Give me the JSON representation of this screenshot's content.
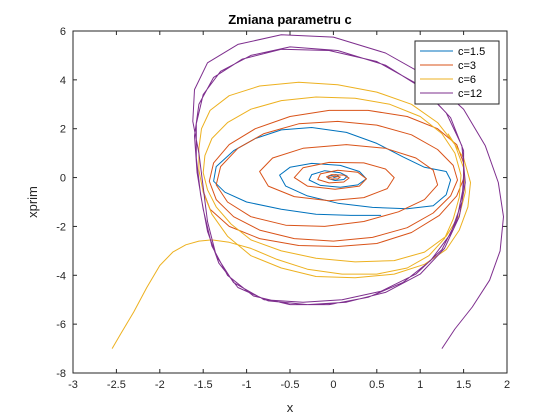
{
  "chart_data": {
    "type": "line",
    "title": "Zmiana parametru c",
    "xlabel": "x",
    "ylabel": "xprim",
    "xlim": [
      -3,
      2
    ],
    "ylim": [
      -8,
      6
    ],
    "xticks": [
      "-3",
      "-2.5",
      "-2",
      "-1.5",
      "-1",
      "-0.5",
      "0",
      "0.5",
      "1",
      "1.5",
      "2"
    ],
    "yticks": [
      "-8",
      "-6",
      "-4",
      "-2",
      "0",
      "2",
      "4",
      "6"
    ],
    "grid": false,
    "legend_position": "top-right",
    "series": [
      {
        "name": "c=1.5",
        "color": "#0072BD",
        "points": [
          [
            0,
            0
          ],
          [
            0.06,
            0.05
          ],
          [
            0.03,
            0.12
          ],
          [
            -0.05,
            0.07
          ],
          [
            -0.06,
            -0.04
          ],
          [
            0.02,
            -0.12
          ],
          [
            0.12,
            -0.08
          ],
          [
            0.16,
            0.05
          ],
          [
            0.08,
            0.2
          ],
          [
            -0.1,
            0.28
          ],
          [
            -0.25,
            0.12
          ],
          [
            -0.28,
            -0.1
          ],
          [
            -0.15,
            -0.32
          ],
          [
            0.08,
            -0.4
          ],
          [
            0.28,
            -0.3
          ],
          [
            0.38,
            -0.05
          ],
          [
            0.3,
            0.25
          ],
          [
            0.08,
            0.5
          ],
          [
            -0.25,
            0.58
          ],
          [
            -0.5,
            0.42
          ],
          [
            -0.62,
            0.1
          ],
          [
            -0.55,
            -0.35
          ],
          [
            -0.3,
            -0.75
          ],
          [
            0.05,
            -1.05
          ],
          [
            0.45,
            -1.22
          ],
          [
            0.85,
            -1.28
          ],
          [
            1.15,
            -1.15
          ],
          [
            1.3,
            -0.7
          ],
          [
            1.35,
            -0.1
          ],
          [
            1.3,
            0.25
          ],
          [
            1.05,
            0.42
          ],
          [
            0.8,
            0.85
          ],
          [
            0.5,
            1.4
          ],
          [
            0.15,
            1.85
          ],
          [
            -0.25,
            2.05
          ],
          [
            -0.6,
            1.95
          ],
          [
            -0.9,
            1.6
          ],
          [
            -1.15,
            1.1
          ],
          [
            -1.35,
            0.45
          ],
          [
            -1.38,
            -0.15
          ],
          [
            -1.25,
            -0.6
          ],
          [
            -1.0,
            -1.0
          ],
          [
            -0.6,
            -1.3
          ],
          [
            -0.2,
            -1.5
          ],
          [
            0.2,
            -1.55
          ],
          [
            0.55,
            -1.55
          ]
        ]
      },
      {
        "name": "c=3",
        "color": "#D95319",
        "points": [
          [
            -0.05,
            0
          ],
          [
            0.02,
            0.06
          ],
          [
            0.08,
            0.02
          ],
          [
            0.05,
            -0.06
          ],
          [
            -0.04,
            -0.06
          ],
          [
            -0.08,
            0.03
          ],
          [
            -0.02,
            0.12
          ],
          [
            0.12,
            0.1
          ],
          [
            0.18,
            -0.02
          ],
          [
            0.12,
            -0.18
          ],
          [
            -0.05,
            -0.22
          ],
          [
            -0.18,
            -0.08
          ],
          [
            -0.15,
            0.15
          ],
          [
            0.05,
            0.3
          ],
          [
            0.28,
            0.22
          ],
          [
            0.38,
            -0.05
          ],
          [
            0.3,
            -0.35
          ],
          [
            0.02,
            -0.48
          ],
          [
            -0.3,
            -0.35
          ],
          [
            -0.45,
            0.0
          ],
          [
            -0.35,
            0.4
          ],
          [
            -0.05,
            0.62
          ],
          [
            0.35,
            0.6
          ],
          [
            0.6,
            0.35
          ],
          [
            0.7,
            0.0
          ],
          [
            0.62,
            -0.45
          ],
          [
            0.35,
            -0.82
          ],
          [
            -0.05,
            -0.95
          ],
          [
            -0.45,
            -0.78
          ],
          [
            -0.75,
            -0.35
          ],
          [
            -0.85,
            0.25
          ],
          [
            -0.7,
            0.8
          ],
          [
            -0.35,
            1.2
          ],
          [
            0.15,
            1.35
          ],
          [
            0.6,
            1.2
          ],
          [
            0.95,
            0.8
          ],
          [
            1.15,
            0.3
          ],
          [
            1.2,
            -0.3
          ],
          [
            1.05,
            -0.9
          ],
          [
            0.75,
            -1.4
          ],
          [
            0.35,
            -1.8
          ],
          [
            -0.1,
            -2.0
          ],
          [
            -0.55,
            -1.95
          ],
          [
            -0.95,
            -1.6
          ],
          [
            -1.22,
            -1.0
          ],
          [
            -1.35,
            -0.3
          ],
          [
            -1.3,
            0.45
          ],
          [
            -1.1,
            1.2
          ],
          [
            -0.8,
            1.8
          ],
          [
            -0.4,
            2.2
          ],
          [
            0.05,
            2.3
          ],
          [
            0.5,
            2.15
          ],
          [
            0.9,
            1.75
          ],
          [
            1.2,
            1.15
          ],
          [
            1.38,
            0.5
          ],
          [
            1.43,
            -0.1
          ],
          [
            1.35,
            -0.75
          ],
          [
            1.15,
            -1.45
          ],
          [
            0.85,
            -2.05
          ],
          [
            0.45,
            -2.45
          ],
          [
            0.0,
            -2.6
          ],
          [
            -0.45,
            -2.5
          ],
          [
            -0.85,
            -2.15
          ],
          [
            -1.15,
            -1.6
          ],
          [
            -1.35,
            -0.9
          ],
          [
            -1.43,
            -0.15
          ],
          [
            -1.38,
            0.6
          ],
          [
            -1.2,
            1.35
          ],
          [
            -0.9,
            2.0
          ],
          [
            -0.5,
            2.5
          ],
          [
            -0.05,
            2.75
          ],
          [
            0.4,
            2.75
          ],
          [
            0.85,
            2.5
          ],
          [
            1.2,
            2.0
          ],
          [
            1.42,
            1.35
          ],
          [
            1.5,
            0.6
          ],
          [
            1.5,
            -0.05
          ],
          [
            1.42,
            -0.75
          ],
          [
            1.22,
            -1.55
          ],
          [
            0.9,
            -2.25
          ],
          [
            0.5,
            -2.7
          ],
          [
            0.05,
            -2.82
          ],
          [
            -0.4,
            -2.78
          ],
          [
            -0.85,
            -2.5
          ],
          [
            -1.2,
            -2.0
          ],
          [
            -1.42,
            -1.3
          ],
          [
            -1.5,
            -0.55
          ]
        ]
      },
      {
        "name": "c=6",
        "color": "#EDB120",
        "points": [
          [
            -2.55,
            -7.0
          ],
          [
            -2.45,
            -6.4
          ],
          [
            -2.3,
            -5.5
          ],
          [
            -2.15,
            -4.5
          ],
          [
            -2.0,
            -3.6
          ],
          [
            -1.85,
            -3.05
          ],
          [
            -1.7,
            -2.75
          ],
          [
            -1.55,
            -2.6
          ],
          [
            -1.4,
            -2.55
          ],
          [
            -1.2,
            -2.65
          ],
          [
            -0.95,
            -2.9
          ],
          [
            -0.65,
            -3.35
          ],
          [
            -0.3,
            -3.75
          ],
          [
            0.1,
            -3.95
          ],
          [
            0.5,
            -3.95
          ],
          [
            0.85,
            -3.7
          ],
          [
            1.1,
            -3.2
          ],
          [
            1.28,
            -2.5
          ],
          [
            1.38,
            -1.7
          ],
          [
            1.45,
            -0.8
          ],
          [
            1.47,
            0.1
          ],
          [
            1.4,
            1.0
          ],
          [
            1.25,
            1.8
          ],
          [
            1.0,
            2.5
          ],
          [
            0.65,
            3.0
          ],
          [
            0.25,
            3.25
          ],
          [
            -0.2,
            3.3
          ],
          [
            -0.6,
            3.15
          ],
          [
            -0.95,
            2.8
          ],
          [
            -1.22,
            2.25
          ],
          [
            -1.4,
            1.6
          ],
          [
            -1.48,
            0.9
          ],
          [
            -1.5,
            0.2
          ],
          [
            -1.45,
            -0.5
          ],
          [
            -1.35,
            -1.2
          ],
          [
            -1.18,
            -1.9
          ],
          [
            -0.95,
            -2.55
          ],
          [
            -0.6,
            -3.0
          ],
          [
            -0.2,
            -3.3
          ],
          [
            0.25,
            -3.45
          ],
          [
            0.7,
            -3.4
          ],
          [
            1.05,
            -3.05
          ],
          [
            1.3,
            -2.4
          ],
          [
            1.45,
            -1.55
          ],
          [
            1.52,
            -0.6
          ],
          [
            1.5,
            0.4
          ],
          [
            1.4,
            1.35
          ],
          [
            1.2,
            2.25
          ],
          [
            0.9,
            3.0
          ],
          [
            0.5,
            3.5
          ],
          [
            0.05,
            3.8
          ],
          [
            -0.4,
            3.9
          ],
          [
            -0.85,
            3.75
          ],
          [
            -1.2,
            3.35
          ],
          [
            -1.42,
            2.75
          ],
          [
            -1.52,
            2.0
          ],
          [
            -1.55,
            1.2
          ],
          [
            -1.55,
            0.3
          ],
          [
            -1.5,
            -0.6
          ],
          [
            -1.4,
            -1.5
          ],
          [
            -1.22,
            -2.4
          ],
          [
            -0.95,
            -3.2
          ],
          [
            -0.6,
            -3.7
          ],
          [
            -0.2,
            -4.05
          ],
          [
            0.25,
            -4.1
          ],
          [
            0.7,
            -3.95
          ],
          [
            1.05,
            -3.55
          ],
          [
            1.3,
            -2.95
          ],
          [
            1.45,
            -2.15
          ],
          [
            1.55,
            -1.2
          ],
          [
            1.58,
            -0.2
          ],
          [
            1.5,
            0.8
          ],
          [
            1.32,
            1.8
          ]
        ]
      },
      {
        "name": "c=12",
        "color": "#7E2F8E",
        "points": [
          [
            1.25,
            -7.0
          ],
          [
            1.4,
            -6.2
          ],
          [
            1.6,
            -5.3
          ],
          [
            1.8,
            -4.2
          ],
          [
            1.92,
            -3.0
          ],
          [
            1.96,
            -1.6
          ],
          [
            1.9,
            -0.2
          ],
          [
            1.75,
            1.3
          ],
          [
            1.5,
            2.8
          ],
          [
            1.1,
            4.1
          ],
          [
            0.6,
            5.1
          ],
          [
            0.0,
            5.75
          ],
          [
            -0.6,
            5.85
          ],
          [
            -1.1,
            5.45
          ],
          [
            -1.45,
            4.7
          ],
          [
            -1.6,
            3.6
          ],
          [
            -1.62,
            2.3
          ],
          [
            -1.55,
            1.0
          ],
          [
            -1.5,
            -0.4
          ],
          [
            -1.45,
            -1.8
          ],
          [
            -1.35,
            -3.2
          ],
          [
            -1.15,
            -4.3
          ],
          [
            -0.8,
            -5.0
          ],
          [
            -0.35,
            -5.1
          ],
          [
            0.1,
            -5.0
          ],
          [
            0.55,
            -4.65
          ],
          [
            0.95,
            -3.95
          ],
          [
            1.25,
            -2.95
          ],
          [
            1.42,
            -1.75
          ],
          [
            1.5,
            -0.35
          ],
          [
            1.5,
            1.1
          ],
          [
            1.35,
            2.45
          ],
          [
            1.05,
            3.6
          ],
          [
            0.6,
            4.6
          ],
          [
            0.05,
            5.2
          ],
          [
            -0.5,
            5.35
          ],
          [
            -0.95,
            5.0
          ],
          [
            -1.3,
            4.35
          ],
          [
            -1.5,
            3.4
          ],
          [
            -1.58,
            2.2
          ],
          [
            -1.58,
            0.8
          ],
          [
            -1.53,
            -0.7
          ],
          [
            -1.45,
            -2.2
          ],
          [
            -1.32,
            -3.5
          ],
          [
            -1.1,
            -4.5
          ],
          [
            -0.75,
            -5.05
          ],
          [
            -0.3,
            -5.2
          ],
          [
            0.15,
            -5.1
          ],
          [
            0.6,
            -4.7
          ],
          [
            1.0,
            -3.95
          ],
          [
            1.28,
            -2.9
          ],
          [
            1.45,
            -1.6
          ],
          [
            1.52,
            -0.2
          ],
          [
            1.48,
            1.3
          ],
          [
            1.3,
            2.65
          ],
          [
            0.98,
            3.8
          ],
          [
            0.5,
            4.75
          ],
          [
            -0.05,
            5.2
          ],
          [
            -0.6,
            5.25
          ],
          [
            -1.05,
            4.85
          ],
          [
            -1.38,
            4.1
          ],
          [
            -1.55,
            3.0
          ],
          [
            -1.6,
            1.7
          ],
          [
            -1.57,
            0.2
          ],
          [
            -1.5,
            -1.3
          ],
          [
            -1.4,
            -2.8
          ],
          [
            -1.22,
            -4.0
          ],
          [
            -0.92,
            -4.85
          ],
          [
            -0.5,
            -5.2
          ],
          [
            -0.05,
            -5.2
          ],
          [
            0.4,
            -4.9
          ],
          [
            0.8,
            -4.3
          ],
          [
            1.12,
            -3.4
          ],
          [
            1.35,
            -2.3
          ],
          [
            1.48,
            -1.0
          ],
          [
            1.5,
            0.1
          ]
        ]
      }
    ]
  }
}
